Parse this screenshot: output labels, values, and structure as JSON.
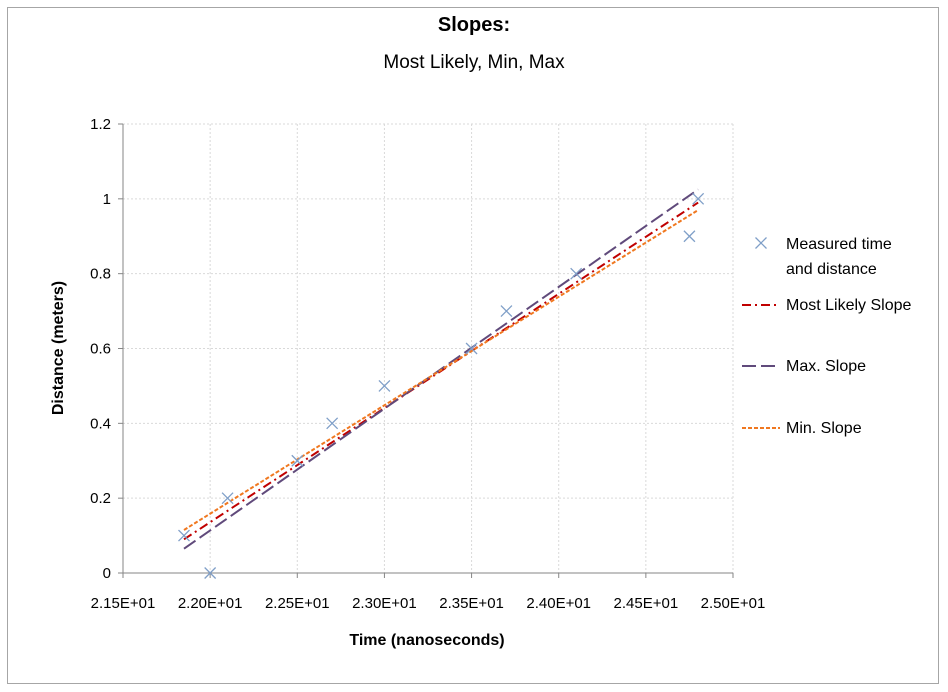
{
  "chart_data": {
    "type": "scatter",
    "title": "Slopes:",
    "subtitle": "Most Likely, Min, Max",
    "xlabel": "Time (nanoseconds)",
    "ylabel": "Distance (meters)",
    "xlim": [
      21.5,
      25.0
    ],
    "ylim": [
      0,
      1.2
    ],
    "x_ticks": [
      21.5,
      22.0,
      22.5,
      23.0,
      23.5,
      24.0,
      24.5,
      25.0
    ],
    "x_tick_labels": [
      "2.15E+01",
      "2.20E+01",
      "2.25E+01",
      "2.30E+01",
      "2.35E+01",
      "2.40E+01",
      "2.45E+01",
      "2.50E+01"
    ],
    "y_ticks": [
      0,
      0.2,
      0.4,
      0.6,
      0.8,
      1.0,
      1.2
    ],
    "y_tick_labels": [
      "0",
      "0.2",
      "0.4",
      "0.6",
      "0.8",
      "1",
      "1.2"
    ],
    "grid": true,
    "legend_position": "right",
    "series": [
      {
        "name": "Measured time and distance",
        "name_lines": [
          "Measured time",
          "and distance"
        ],
        "kind": "markers",
        "marker": "x",
        "color": "#7f9fc8",
        "points": [
          {
            "x": 21.85,
            "y": 0.1
          },
          {
            "x": 22.0,
            "y": 0.0
          },
          {
            "x": 22.1,
            "y": 0.2
          },
          {
            "x": 22.5,
            "y": 0.3
          },
          {
            "x": 22.7,
            "y": 0.4
          },
          {
            "x": 23.0,
            "y": 0.5
          },
          {
            "x": 23.5,
            "y": 0.6
          },
          {
            "x": 23.7,
            "y": 0.7
          },
          {
            "x": 24.1,
            "y": 0.8
          },
          {
            "x": 24.75,
            "y": 0.9
          },
          {
            "x": 24.8,
            "y": 1.0
          }
        ]
      },
      {
        "name": "Most Likely Slope",
        "name_lines": [
          "Most Likely Slope"
        ],
        "kind": "line",
        "dash": "dash-dot",
        "color": "#c00000",
        "points": [
          {
            "x": 21.85,
            "y": 0.09
          },
          {
            "x": 24.8,
            "y": 0.99
          }
        ]
      },
      {
        "name": "Max. Slope",
        "name_lines": [
          "Max. Slope"
        ],
        "kind": "line",
        "dash": "long-dash",
        "color": "#604a7b",
        "points": [
          {
            "x": 21.85,
            "y": 0.065
          },
          {
            "x": 24.8,
            "y": 1.025
          }
        ]
      },
      {
        "name": "Min. Slope",
        "name_lines": [
          "Min. Slope"
        ],
        "kind": "line",
        "dash": "short-dash",
        "color": "#f07820",
        "points": [
          {
            "x": 21.85,
            "y": 0.115
          },
          {
            "x": 24.8,
            "y": 0.97
          }
        ]
      }
    ]
  }
}
